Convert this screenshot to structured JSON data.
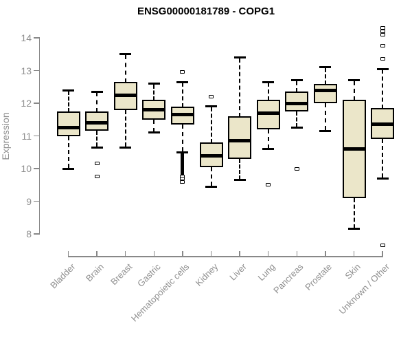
{
  "chart_data": {
    "type": "boxplot",
    "title": "ENSG00000181789 - COPG1",
    "ylabel": "Expression",
    "ylim": [
      8,
      14
    ],
    "yticks": [
      8,
      9,
      10,
      11,
      12,
      13,
      14
    ],
    "grid": false,
    "legend": null,
    "categories": [
      "Bladder",
      "Brain",
      "Breast",
      "Gastric",
      "Hematopoietic cells",
      "Kidney",
      "Liver",
      "Lung",
      "Pancreas",
      "Prostate",
      "Skin",
      "Unknown / Other"
    ],
    "boxes": [
      {
        "label": "Bladder",
        "low": 10.0,
        "q1": 11.0,
        "median": 11.25,
        "q3": 11.75,
        "high": 12.4,
        "outliers": []
      },
      {
        "label": "Brain",
        "low": 10.65,
        "q1": 11.15,
        "median": 11.4,
        "q3": 11.75,
        "high": 12.35,
        "outliers": [
          10.15,
          9.75
        ]
      },
      {
        "label": "Breast",
        "low": 10.65,
        "q1": 11.8,
        "median": 12.25,
        "q3": 12.65,
        "high": 13.5,
        "outliers": []
      },
      {
        "label": "Gastric",
        "low": 11.1,
        "q1": 11.5,
        "median": 11.8,
        "q3": 12.1,
        "high": 12.6,
        "outliers": []
      },
      {
        "label": "Hematopoietic cells",
        "low": 10.5,
        "q1": 11.35,
        "median": 11.65,
        "q3": 11.9,
        "high": 12.65,
        "outliers": [
          12.95,
          9.75,
          9.7,
          9.6
        ],
        "outlier_run": [
          9.85,
          10.45
        ]
      },
      {
        "label": "Kidney",
        "low": 9.45,
        "q1": 10.05,
        "median": 10.4,
        "q3": 10.8,
        "high": 11.9,
        "outliers": [
          12.2
        ]
      },
      {
        "label": "Liver",
        "low": 9.65,
        "q1": 10.3,
        "median": 10.85,
        "q3": 11.6,
        "high": 13.4,
        "outliers": []
      },
      {
        "label": "Lung",
        "low": 10.6,
        "q1": 11.2,
        "median": 11.7,
        "q3": 12.1,
        "high": 12.65,
        "outliers": [
          9.5
        ]
      },
      {
        "label": "Pancreas",
        "low": 11.25,
        "q1": 11.75,
        "median": 12.0,
        "q3": 12.35,
        "high": 12.7,
        "outliers": [
          10.0
        ]
      },
      {
        "label": "Prostate",
        "low": 11.15,
        "q1": 12.0,
        "median": 12.4,
        "q3": 12.6,
        "high": 13.1,
        "outliers": []
      },
      {
        "label": "Skin",
        "low": 8.15,
        "q1": 9.1,
        "median": 10.6,
        "q3": 12.1,
        "high": 12.7,
        "outliers": []
      },
      {
        "label": "Unknown / Other",
        "low": 9.7,
        "q1": 10.9,
        "median": 11.35,
        "q3": 11.85,
        "high": 13.05,
        "outliers": [
          14.3,
          14.2,
          14.1,
          13.75,
          13.35,
          7.65
        ]
      }
    ]
  },
  "colors": {
    "box_fill": "#ebe6c9",
    "box_border": "#000000",
    "median": "#000000",
    "whisker": "#000000",
    "axis": "#888888",
    "tick_label": "#8e8e8e",
    "title": "#000000",
    "background": "#ffffff"
  }
}
